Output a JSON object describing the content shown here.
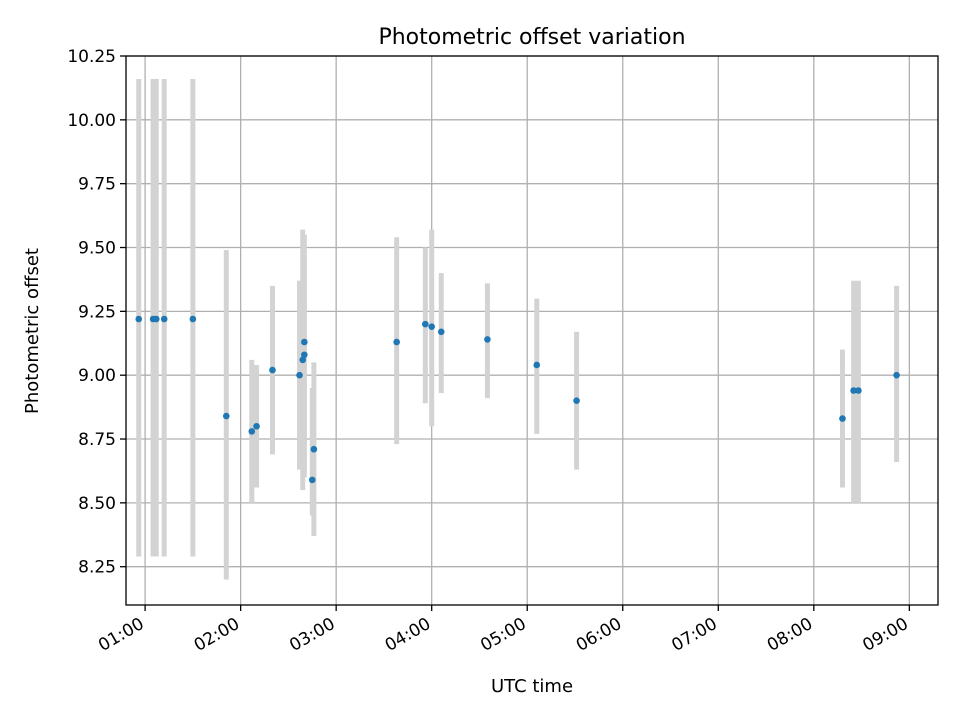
{
  "chart_data": {
    "type": "scatter",
    "title": "Photometric offset variation",
    "xlabel": "UTC time",
    "ylabel": "Photometric offset",
    "xlim": [
      "00:48",
      "09:18"
    ],
    "ylim": [
      8.1,
      10.25
    ],
    "grid": true,
    "x_ticks": [
      "01:00",
      "02:00",
      "03:00",
      "04:00",
      "05:00",
      "06:00",
      "07:00",
      "08:00",
      "09:00"
    ],
    "y_ticks": [
      "8.25",
      "8.50",
      "8.75",
      "9.00",
      "9.25",
      "9.50",
      "9.75",
      "10.00",
      "10.25"
    ],
    "colors": {
      "points": "#1f77b4",
      "error_bars": "#d3d3d3",
      "grid": "#b0b0b0"
    },
    "series": [
      {
        "points": [
          {
            "x": "00:56",
            "y": 9.22,
            "ylow": 8.29,
            "yhigh": 10.16
          },
          {
            "x": "01:05",
            "y": 9.22,
            "ylow": 8.29,
            "yhigh": 10.16
          },
          {
            "x": "01:07",
            "y": 9.22,
            "ylow": 8.29,
            "yhigh": 10.16
          },
          {
            "x": "01:12",
            "y": 9.22,
            "ylow": 8.29,
            "yhigh": 10.16
          },
          {
            "x": "01:30",
            "y": 9.22,
            "ylow": 8.29,
            "yhigh": 10.16
          },
          {
            "x": "01:51",
            "y": 8.84,
            "ylow": 8.2,
            "yhigh": 9.49
          },
          {
            "x": "02:07",
            "y": 8.78,
            "ylow": 8.5,
            "yhigh": 9.06
          },
          {
            "x": "02:10",
            "y": 8.8,
            "ylow": 8.56,
            "yhigh": 9.04
          },
          {
            "x": "02:20",
            "y": 9.02,
            "ylow": 8.69,
            "yhigh": 9.35
          },
          {
            "x": "02:37",
            "y": 9.0,
            "ylow": 8.63,
            "yhigh": 9.37
          },
          {
            "x": "02:39",
            "y": 9.06,
            "ylow": 8.55,
            "yhigh": 9.57
          },
          {
            "x": "02:40",
            "y": 9.13,
            "ylow": 8.62,
            "yhigh": 9.55
          },
          {
            "x": "02:40",
            "y": 9.08,
            "ylow": 8.6,
            "yhigh": 9.45
          },
          {
            "x": "02:45",
            "y": 8.59,
            "ylow": 8.45,
            "yhigh": 8.95
          },
          {
            "x": "02:46",
            "y": 8.71,
            "ylow": 8.37,
            "yhigh": 9.05
          },
          {
            "x": "03:38",
            "y": 9.13,
            "ylow": 8.73,
            "yhigh": 9.54
          },
          {
            "x": "03:56",
            "y": 9.2,
            "ylow": 8.89,
            "yhigh": 9.5
          },
          {
            "x": "04:00",
            "y": 9.19,
            "ylow": 8.8,
            "yhigh": 9.57
          },
          {
            "x": "04:06",
            "y": 9.17,
            "ylow": 8.93,
            "yhigh": 9.4
          },
          {
            "x": "04:35",
            "y": 9.14,
            "ylow": 8.91,
            "yhigh": 9.36
          },
          {
            "x": "05:06",
            "y": 9.04,
            "ylow": 8.77,
            "yhigh": 9.3
          },
          {
            "x": "05:31",
            "y": 8.9,
            "ylow": 8.63,
            "yhigh": 9.17
          },
          {
            "x": "08:18",
            "y": 8.83,
            "ylow": 8.56,
            "yhigh": 9.1
          },
          {
            "x": "08:25",
            "y": 8.94,
            "ylow": 8.5,
            "yhigh": 9.37
          },
          {
            "x": "08:28",
            "y": 8.94,
            "ylow": 8.5,
            "yhigh": 9.37
          },
          {
            "x": "08:52",
            "y": 9.0,
            "ylow": 8.66,
            "yhigh": 9.35
          }
        ]
      }
    ]
  }
}
